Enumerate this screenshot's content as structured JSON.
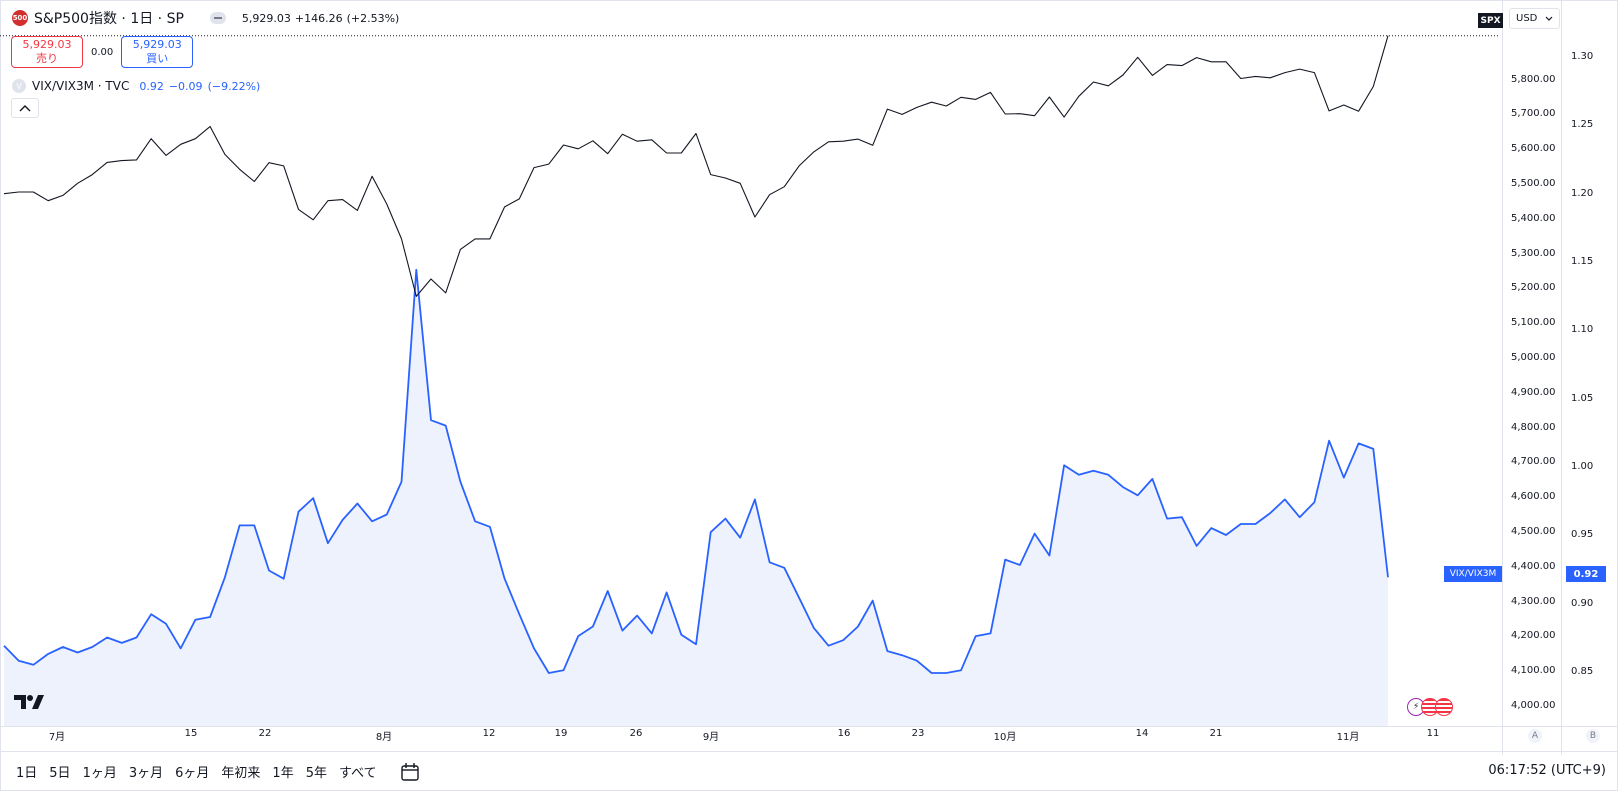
{
  "legend": {
    "symbol_badge": "500",
    "main_title": "S&P500指数 · 1日 · SP",
    "last": "5,929.03",
    "change": "+146.26",
    "change_pct": "(+2.53%)",
    "sell_price": "5,929.03",
    "sell_label": "売り",
    "spread": "0.00",
    "buy_price": "5,929.03",
    "buy_label": "買い",
    "overlay_badge": "V",
    "overlay_title": "VIX/VIX3M · TVC",
    "overlay_last": "0.92",
    "overlay_change": "−0.09",
    "overlay_change_pct": "(−9.22%)",
    "collapse_icon": "chevron-up-icon"
  },
  "axis": {
    "currency": "USD",
    "spx_tag": "SPX",
    "vix_tag": "VIX/VIX3M",
    "vix_price": "0.92",
    "scale_a": "A",
    "scale_b": "B"
  },
  "time_labels": [
    "7月",
    "15",
    "22",
    "8月",
    "12",
    "19",
    "26",
    "9月",
    "16",
    "23",
    "10月",
    "14",
    "21",
    "11月",
    "11"
  ],
  "bottom_bar": {
    "ranges": [
      "1日",
      "5日",
      "1ヶ月",
      "3ヶ月",
      "6ヶ月",
      "年初来",
      "1年",
      "5年",
      "すべて"
    ],
    "clock": "06:17:52 (UTC+9)"
  },
  "chart_data": {
    "type": "line",
    "x_axis": "date (daily, Jul–Nov)",
    "spx_axis": {
      "ticks": [
        "5,800.00",
        "5,700.00",
        "5,600.00",
        "5,500.00",
        "5,400.00",
        "5,300.00",
        "5,200.00",
        "5,100.00",
        "5,000.00",
        "4,900.00",
        "4,800.00",
        "4,700.00",
        "4,600.00",
        "4,500.00",
        "4,400.00",
        "4,300.00",
        "4,200.00",
        "4,100.00",
        "4,000.00"
      ],
      "range": [
        3960,
        6060
      ]
    },
    "ratio_axis": {
      "ticks": [
        "1.30",
        "1.25",
        "1.20",
        "1.15",
        "1.10",
        "1.05",
        "1.00",
        "0.95",
        "0.90",
        "0.85"
      ],
      "range": [
        0.823,
        1.33
      ]
    },
    "series": [
      {
        "symbol": "SPX",
        "color": "#131722",
        "values": [
          5475,
          5480,
          5480,
          5455,
          5470,
          5505,
          5530,
          5565,
          5570,
          5572,
          5633,
          5585,
          5617,
          5633,
          5668,
          5588,
          5545,
          5510,
          5564,
          5555,
          5430,
          5400,
          5455,
          5458,
          5427,
          5525,
          5445,
          5345,
          5180,
          5230,
          5190,
          5315,
          5345,
          5345,
          5437,
          5460,
          5550,
          5560,
          5615,
          5604,
          5627,
          5590,
          5646,
          5626,
          5630,
          5592,
          5592,
          5648,
          5530,
          5520,
          5505,
          5408,
          5472,
          5495,
          5555,
          5595,
          5624,
          5626,
          5632,
          5614,
          5718,
          5703,
          5723,
          5738,
          5727,
          5752,
          5746,
          5766,
          5704,
          5705,
          5699,
          5753,
          5695,
          5755,
          5796,
          5785,
          5816,
          5867,
          5815,
          5846,
          5843,
          5866,
          5854,
          5854,
          5806,
          5812,
          5808,
          5823,
          5833,
          5823,
          5713,
          5730,
          5712,
          5783,
          5929
        ]
      },
      {
        "symbol": "VIX/VIX3M",
        "color": "#2962ff",
        "values": [
          0.87,
          0.859,
          0.856,
          0.864,
          0.869,
          0.865,
          0.869,
          0.876,
          0.872,
          0.876,
          0.893,
          0.886,
          0.868,
          0.889,
          0.891,
          0.92,
          0.958,
          0.958,
          0.925,
          0.919,
          0.968,
          0.978,
          0.945,
          0.962,
          0.974,
          0.961,
          0.966,
          0.99,
          1.145,
          1.035,
          1.031,
          0.99,
          0.961,
          0.957,
          0.919,
          0.893,
          0.868,
          0.85,
          0.852,
          0.877,
          0.884,
          0.91,
          0.881,
          0.892,
          0.879,
          0.909,
          0.878,
          0.871,
          0.953,
          0.963,
          0.949,
          0.977,
          0.931,
          0.927,
          0.905,
          0.883,
          0.87,
          0.874,
          0.884,
          0.903,
          0.866,
          0.863,
          0.859,
          0.85,
          0.85,
          0.852,
          0.877,
          0.879,
          0.933,
          0.929,
          0.952,
          0.936,
          1.002,
          0.995,
          0.998,
          0.995,
          0.986,
          0.98,
          0.992,
          0.963,
          0.964,
          0.943,
          0.956,
          0.951,
          0.959,
          0.959,
          0.967,
          0.977,
          0.964,
          0.975,
          1.02,
          0.993,
          1.018,
          1.014,
          0.92
        ]
      }
    ]
  }
}
